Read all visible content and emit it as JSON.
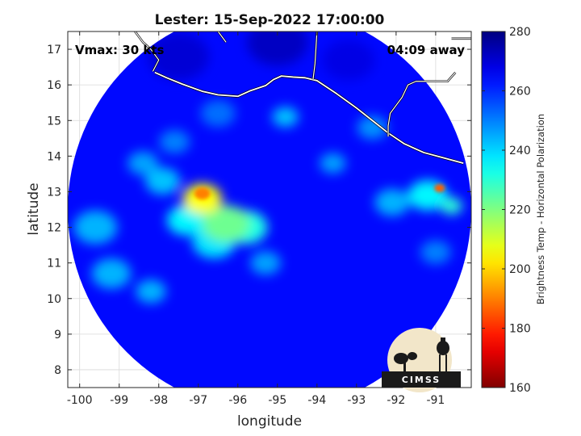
{
  "chart_data": {
    "type": "heatmap",
    "title": "Lester: 15-Sep-2022 17:00:00",
    "annotations": {
      "vmax": "Vmax: 30 kts",
      "time_away": "04:09 away"
    },
    "xlabel": "longitude",
    "ylabel": "latitude",
    "xlim": [
      -100.3,
      -90.1
    ],
    "ylim": [
      7.5,
      17.5
    ],
    "x_ticks": [
      -100,
      -99,
      -98,
      -97,
      -96,
      -95,
      -94,
      -93,
      -92,
      -91
    ],
    "x_tick_labels": [
      "-100",
      "-99",
      "-98",
      "-97",
      "-96",
      "-95",
      "-94",
      "-93",
      "-92",
      "-91"
    ],
    "y_ticks": [
      8,
      9,
      10,
      11,
      12,
      13,
      14,
      15,
      16,
      17
    ],
    "y_tick_labels": [
      "8",
      "9",
      "10",
      "11",
      "12",
      "13",
      "14",
      "15",
      "16",
      "17"
    ],
    "grid": true,
    "colorbar": {
      "label": "Brightness Temp - Horizontal Polarization",
      "min": 160,
      "max": 280,
      "ticks": [
        160,
        180,
        200,
        220,
        240,
        260,
        280
      ],
      "tick_labels": [
        "160",
        "180",
        "200",
        "220",
        "240",
        "260",
        "280"
      ],
      "colormap": "jet"
    },
    "swath_center": [
      -95.2,
      12.5
    ],
    "background_value": 264,
    "features": [
      {
        "lon": -96.9,
        "lat": 12.95,
        "value": 190,
        "radius": 0.18
      },
      {
        "lon": -96.9,
        "lat": 12.8,
        "value": 205,
        "radius": 0.45
      },
      {
        "lon": -96.3,
        "lat": 12.1,
        "value": 222,
        "radius": 0.55
      },
      {
        "lon": -95.8,
        "lat": 12.0,
        "value": 232,
        "radius": 0.5
      },
      {
        "lon": -97.3,
        "lat": 12.2,
        "value": 236,
        "radius": 0.45
      },
      {
        "lon": -96.6,
        "lat": 11.6,
        "value": 238,
        "radius": 0.5
      },
      {
        "lon": -97.9,
        "lat": 13.3,
        "value": 242,
        "radius": 0.4
      },
      {
        "lon": -98.4,
        "lat": 13.8,
        "value": 246,
        "radius": 0.35
      },
      {
        "lon": -99.6,
        "lat": 12.0,
        "value": 244,
        "radius": 0.5
      },
      {
        "lon": -99.2,
        "lat": 10.7,
        "value": 244,
        "radius": 0.45
      },
      {
        "lon": -98.2,
        "lat": 10.2,
        "value": 244,
        "radius": 0.35
      },
      {
        "lon": -95.3,
        "lat": 11.0,
        "value": 246,
        "radius": 0.35
      },
      {
        "lon": -94.8,
        "lat": 15.1,
        "value": 242,
        "radius": 0.3
      },
      {
        "lon": -93.6,
        "lat": 13.8,
        "value": 246,
        "radius": 0.3
      },
      {
        "lon": -92.1,
        "lat": 12.7,
        "value": 244,
        "radius": 0.4
      },
      {
        "lon": -91.2,
        "lat": 12.9,
        "value": 236,
        "radius": 0.45
      },
      {
        "lon": -90.9,
        "lat": 13.1,
        "value": 186,
        "radius": 0.12
      },
      {
        "lon": -90.6,
        "lat": 12.6,
        "value": 230,
        "radius": 0.25
      },
      {
        "lon": -91.0,
        "lat": 11.3,
        "value": 250,
        "radius": 0.35
      },
      {
        "lon": -97.6,
        "lat": 14.4,
        "value": 250,
        "radius": 0.35
      },
      {
        "lon": -96.5,
        "lat": 15.2,
        "value": 252,
        "radius": 0.4
      },
      {
        "lon": -92.6,
        "lat": 14.8,
        "value": 248,
        "radius": 0.35
      },
      {
        "lon": -93.2,
        "lat": 16.7,
        "value": 268,
        "radius": 0.6
      },
      {
        "lon": -97.5,
        "lat": 16.8,
        "value": 270,
        "radius": 0.7
      },
      {
        "lon": -95.0,
        "lat": 17.2,
        "value": 272,
        "radius": 0.7
      }
    ],
    "coastline": [
      [
        -98.1,
        16.35
      ],
      [
        -97.8,
        16.2
      ],
      [
        -97.4,
        16.02
      ],
      [
        -96.9,
        15.82
      ],
      [
        -96.5,
        15.72
      ],
      [
        -96.0,
        15.68
      ],
      [
        -95.7,
        15.83
      ],
      [
        -95.3,
        15.98
      ],
      [
        -95.1,
        16.15
      ],
      [
        -94.9,
        16.25
      ],
      [
        -94.6,
        16.22
      ],
      [
        -94.3,
        16.2
      ],
      [
        -94.0,
        16.12
      ],
      [
        -93.5,
        15.75
      ],
      [
        -93.0,
        15.35
      ],
      [
        -92.6,
        15.0
      ],
      [
        -92.2,
        14.65
      ],
      [
        -91.8,
        14.35
      ],
      [
        -91.3,
        14.1
      ],
      [
        -90.8,
        13.95
      ],
      [
        -90.3,
        13.8
      ]
    ],
    "borders": [
      [
        [
          -92.2,
          14.55
        ],
        [
          -92.2,
          14.85
        ],
        [
          -92.15,
          15.2
        ],
        [
          -91.85,
          15.65
        ],
        [
          -91.7,
          16.0
        ],
        [
          -91.5,
          16.1
        ],
        [
          -90.7,
          16.1
        ],
        [
          -90.5,
          16.35
        ]
      ],
      [
        [
          -94.1,
          16.15
        ],
        [
          -94.05,
          16.6
        ],
        [
          -94.0,
          17.5
        ]
      ],
      [
        [
          -98.6,
          17.5
        ],
        [
          -98.4,
          17.2
        ],
        [
          -98.2,
          17.0
        ],
        [
          -98.0,
          16.7
        ],
        [
          -98.15,
          16.38
        ]
      ],
      [
        [
          -96.5,
          17.5
        ],
        [
          -96.3,
          17.2
        ]
      ],
      [
        [
          -90.6,
          17.3
        ],
        [
          -90.1,
          17.3
        ]
      ]
    ],
    "logo_text": "CIMSS"
  },
  "colors": {
    "coastline": "#ffffff",
    "border": "#111111",
    "grid": "#d9d9d9",
    "axis": "#262626"
  }
}
